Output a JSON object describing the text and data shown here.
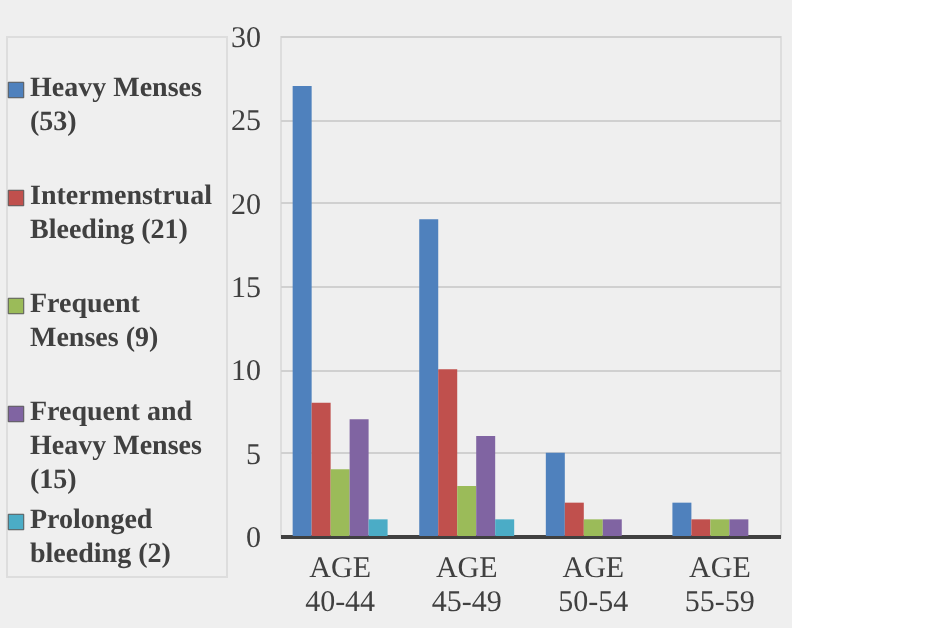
{
  "chart_data": {
    "type": "bar",
    "categories": [
      "AGE 40-44",
      "AGE 45-49",
      "AGE 50-54",
      "AGE 55-59"
    ],
    "series": [
      {
        "name": "Heavy Menses (53)",
        "color": "#4f81bd",
        "values": [
          27,
          19,
          5,
          2
        ]
      },
      {
        "name": "Intermenstrual Bleeding (21)",
        "color": "#c0504d",
        "values": [
          8,
          10,
          2,
          1
        ]
      },
      {
        "name": "Frequent Menses (9)",
        "color": "#9bbb59",
        "values": [
          4,
          3,
          1,
          1
        ]
      },
      {
        "name": "Frequent and Heavy Menses (15)",
        "color": "#8064a2",
        "values": [
          7,
          6,
          1,
          1
        ]
      },
      {
        "name": "Prolonged bleeding (2)",
        "color": "#4bacc6",
        "values": [
          1,
          1,
          0,
          0
        ]
      }
    ],
    "ylim": [
      0,
      30
    ],
    "yticks": [
      0,
      5,
      10,
      15,
      20,
      25,
      30
    ],
    "grid": "y",
    "legend": "left"
  }
}
